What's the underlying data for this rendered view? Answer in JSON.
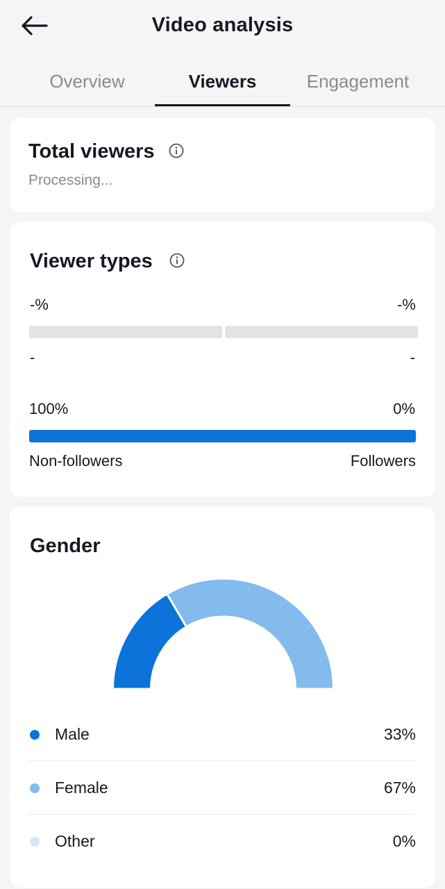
{
  "header": {
    "title": "Video analysis"
  },
  "tabs": [
    {
      "label": "Overview"
    },
    {
      "label": "Viewers"
    },
    {
      "label": "Engagement"
    }
  ],
  "total_viewers": {
    "title": "Total viewers",
    "status": "Processing..."
  },
  "viewer_types": {
    "title": "Viewer types",
    "left_pct": "-%",
    "right_pct": "-%",
    "left_sub": "-",
    "right_sub": "-",
    "non_followers_pct": "100%",
    "followers_pct": "0%",
    "non_followers_label": "Non-followers",
    "followers_label": "Followers",
    "non_followers_fraction": 1.0
  },
  "gender": {
    "title": "Gender",
    "items": [
      {
        "label": "Male",
        "pct": "33%",
        "value": 33,
        "color": "#0b73d9"
      },
      {
        "label": "Female",
        "pct": "67%",
        "value": 67,
        "color": "#82bbec"
      },
      {
        "label": "Other",
        "pct": "0%",
        "value": 0,
        "color": "#d6e7f9"
      }
    ]
  },
  "colors": {
    "accent": "#0b73d9",
    "text": "#161823",
    "muted": "#8a8b91"
  }
}
